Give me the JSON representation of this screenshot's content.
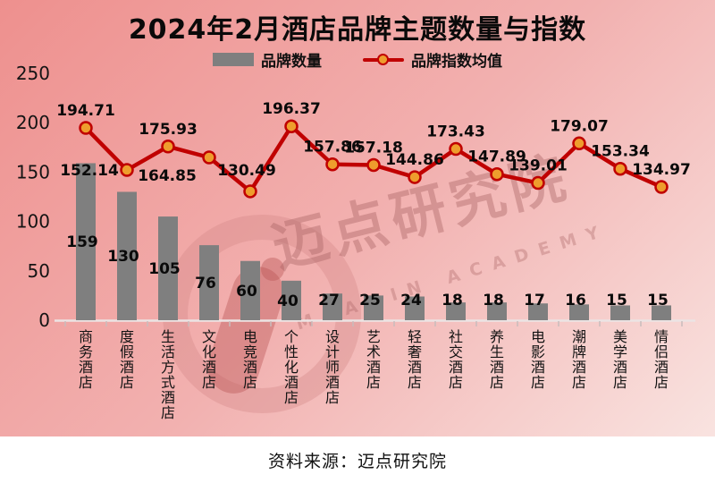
{
  "title": "2024年2月酒店品牌主题数量与指数",
  "source": "资料来源：迈点研究院",
  "watermark": {
    "cn": "迈点研究院",
    "en": "MEADIN ACADEMY"
  },
  "colors": {
    "bar": "#7f7f7f",
    "line": "#c00000",
    "marker_fill": "#ee9d2d",
    "label_text": "#0a0a0a",
    "axis_line": "#ece4e4",
    "tick": "#c9bcbc",
    "bg_start": "#ee908e",
    "bg_mid": "#f2b1b0",
    "bg_end": "#f9e3e0"
  },
  "chart_data": {
    "type": "bar+line",
    "title": "2024年2月酒店品牌主题数量与指数",
    "categories": [
      "商务酒店",
      "度假酒店",
      "生活方式酒店",
      "文化酒店",
      "电竞酒店",
      "个性化酒店",
      "设计师酒店",
      "艺术酒店",
      "轻奢酒店",
      "社交酒店",
      "养生酒店",
      "电影酒店",
      "潮牌酒店",
      "美学酒店",
      "情侣酒店"
    ],
    "series": [
      {
        "name": "品牌数量",
        "type": "bar",
        "values": [
          159,
          130,
          105,
          76,
          60,
          40,
          27,
          25,
          24,
          18,
          18,
          17,
          16,
          15,
          15
        ]
      },
      {
        "name": "品牌指数均值",
        "type": "line",
        "values": [
          194.71,
          152.14,
          175.93,
          164.85,
          130.49,
          196.37,
          157.86,
          157.18,
          144.86,
          173.43,
          147.89,
          139.01,
          179.07,
          153.34,
          134.97
        ]
      }
    ],
    "y_ticks": [
      0,
      50,
      100,
      150,
      200,
      250
    ],
    "ylim": [
      0,
      250
    ],
    "grid": false,
    "legend_position": "top",
    "x_label_orientation": "vertical"
  }
}
